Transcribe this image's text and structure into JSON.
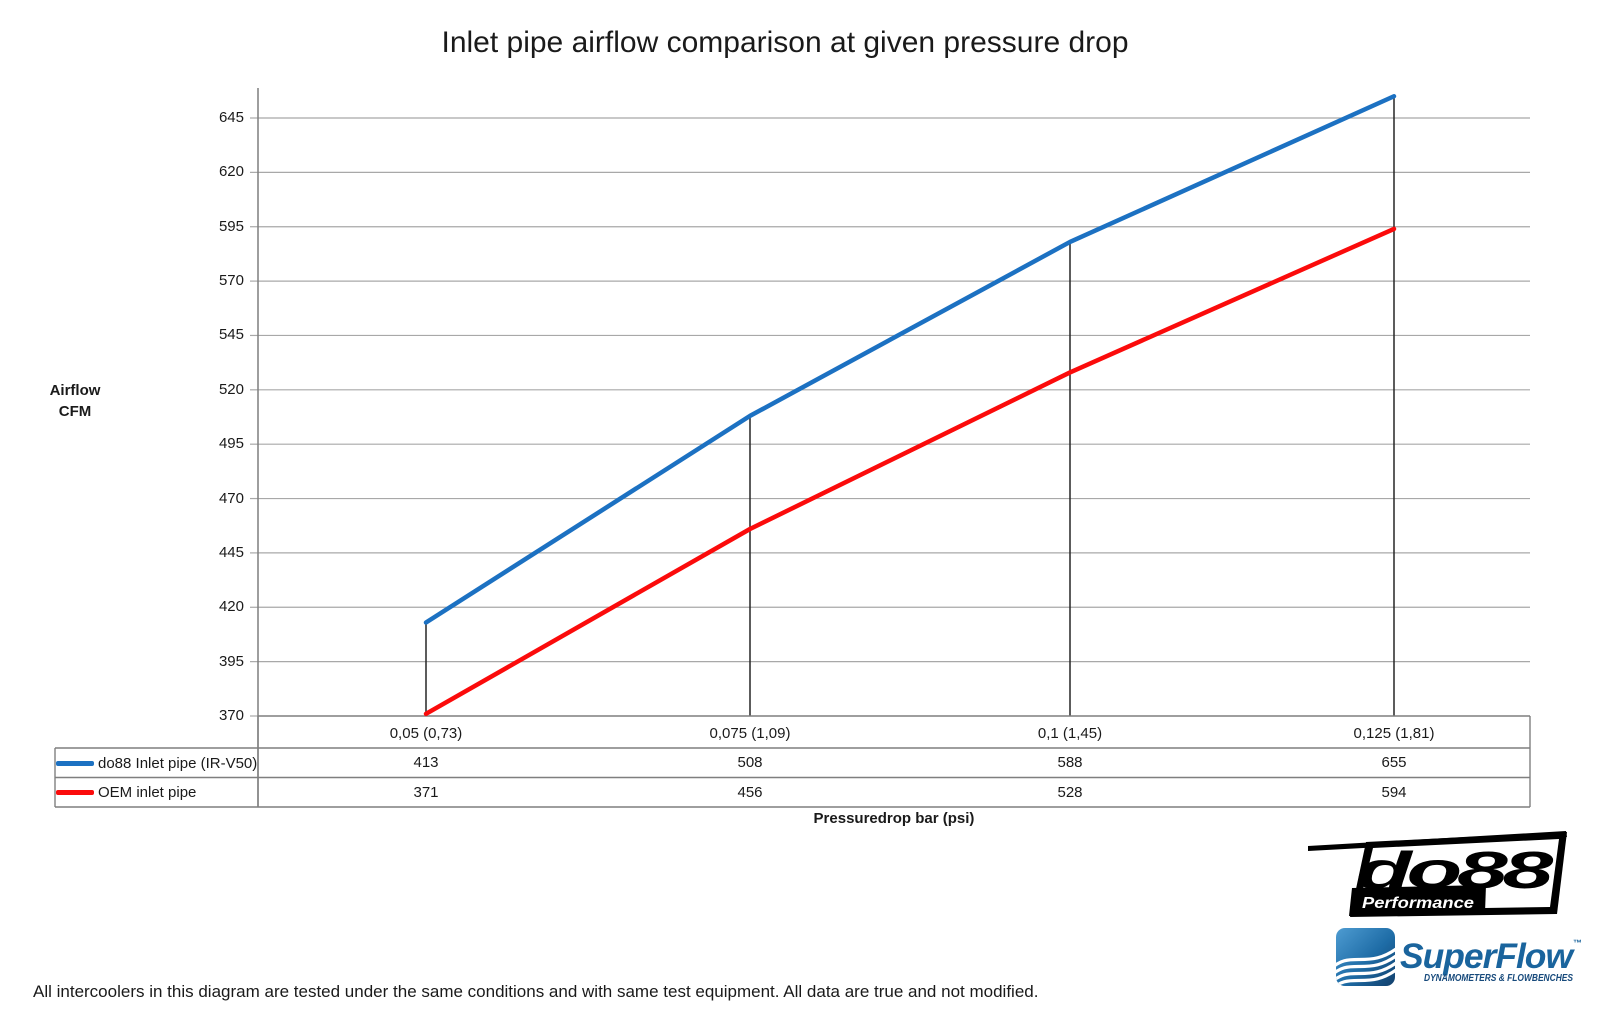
{
  "title": "Inlet pipe airflow comparison at given pressure drop",
  "y_axis": {
    "label_line1": "Airflow",
    "label_line2": "CFM"
  },
  "x_axis": {
    "label": "Pressuredrop bar (psi)"
  },
  "chart_data": {
    "type": "line",
    "title": "Inlet pipe airflow comparison at given pressure drop",
    "xlabel": "Pressuredrop bar (psi)",
    "ylabel": "Airflow CFM",
    "categories": [
      "0,05 (0,73)",
      "0,075 (1,09)",
      "0,1 (1,45)",
      "0,125 (1,81)"
    ],
    "series": [
      {
        "name": "do88 Inlet pipe (IR-V50)",
        "values": [
          413,
          508,
          588,
          655
        ],
        "color": "#1C71C2"
      },
      {
        "name": "OEM inlet pipe",
        "values": [
          371,
          456,
          528,
          594
        ],
        "color": "#FB0B0B"
      }
    ],
    "y_ticks": [
      370,
      395,
      420,
      445,
      470,
      495,
      520,
      545,
      570,
      595,
      620,
      645
    ],
    "ylim": [
      370,
      658
    ],
    "y_tick_step": 25,
    "grid": "horizontal",
    "droplines": true,
    "legend_position": "table-left"
  },
  "note": "All intercoolers in this diagram are tested under the same conditions and with same test equipment. All data are true and not modified.",
  "logos": {
    "do88": {
      "text": "do88",
      "subtext": "Performance"
    },
    "superflow": {
      "text": "SuperFlow",
      "tm": "™",
      "subtext": "DYNAMOMETERS & FLOWBENCHES"
    }
  },
  "colors": {
    "grid": "#A8A8A8",
    "axis": "#7F7F7F",
    "dropline": "#262626",
    "table_border": "#7F7F7F"
  }
}
